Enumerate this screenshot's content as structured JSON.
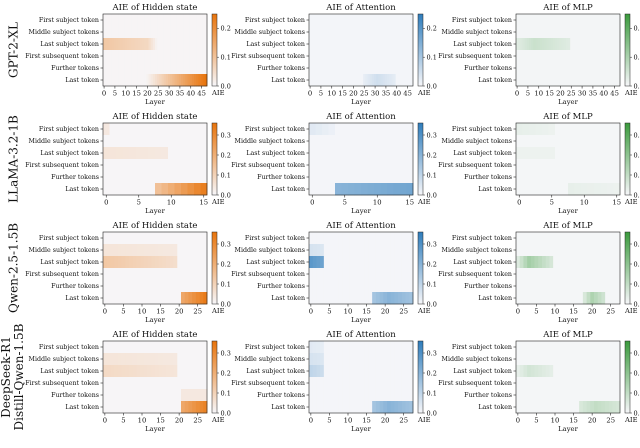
{
  "chart_data": {
    "type": "heatmap",
    "colorbar_label": "AIE",
    "xlabel": "Layer",
    "row_labels": [
      "First subject token",
      "Middle subject tokens",
      "Last subject token",
      "First subsequent token",
      "Further tokens",
      "Last token"
    ],
    "panel_titles": [
      "AIE of Hidden state",
      "AIE of Attention",
      "AIE of MLP"
    ],
    "panel_colors": [
      "#e8740c",
      "#2f7dbc",
      "#3a9a3c"
    ],
    "models": [
      {
        "name": "GPT-2-XL",
        "name_lines": [
          "GPT-2-XL"
        ],
        "n_layers": 48,
        "xticks": [
          0,
          5,
          10,
          15,
          20,
          25,
          30,
          35,
          40,
          45
        ],
        "panels": [
          {
            "vmax": 0.25,
            "cbar_ticks": [
              0.0,
              0.1,
              0.2
            ],
            "cbar_tick_labels": [
              "0.0",
              "0.1",
              "0.2"
            ],
            "regions": [
              {
                "row": 2,
                "from": 0,
                "to": 20,
                "v1": 0.09,
                "v2": 0.06,
                "fade_to": 25
              },
              {
                "row": 5,
                "from": 20,
                "to": 48,
                "v1": 0.01,
                "v2": 0.25
              }
            ]
          },
          {
            "vmax": 0.25,
            "cbar_ticks": [
              0.0,
              0.1,
              0.2
            ],
            "cbar_tick_labels": [
              "0.0",
              "0.1",
              "0.2"
            ],
            "regions": [
              {
                "row": 5,
                "from": 25,
                "to": 40,
                "v1": 0.05,
                "v2": 0.02,
                "peak": 31
              }
            ]
          },
          {
            "vmax": 0.25,
            "cbar_ticks": [
              0.0,
              0.1,
              0.2
            ],
            "cbar_tick_labels": [
              "0.0",
              "0.1",
              "0.2"
            ],
            "regions": [
              {
                "row": 2,
                "from": 0,
                "to": 25,
                "v1": 0.06,
                "v2": 0.03,
                "peak": 8
              }
            ]
          }
        ]
      },
      {
        "name": "LLaMA-3.2-1B",
        "name_lines": [
          "LLaMA-3.2-1B"
        ],
        "n_layers": 16,
        "xticks": [
          0,
          5,
          10,
          15
        ],
        "panels": [
          {
            "vmax": 0.36,
            "cbar_ticks": [
              0.0,
              0.1,
              0.2,
              0.3
            ],
            "cbar_tick_labels": [
              "0.0",
              "0.1",
              "0.2",
              "0.3"
            ],
            "regions": [
              {
                "row": 0,
                "from": 0,
                "to": 1,
                "v1": 0.04,
                "v2": 0.04
              },
              {
                "row": 2,
                "from": 0,
                "to": 10,
                "v1": 0.05,
                "v2": 0.04
              },
              {
                "row": 5,
                "from": 8,
                "to": 16,
                "v1": 0.15,
                "v2": 0.33
              }
            ]
          },
          {
            "vmax": 0.36,
            "cbar_ticks": [
              0.0,
              0.1,
              0.2,
              0.3
            ],
            "cbar_tick_labels": [
              "0.0",
              "0.1",
              "0.2",
              "0.3"
            ],
            "regions": [
              {
                "row": 0,
                "from": 0,
                "to": 4,
                "v1": 0.04,
                "v2": 0.02
              },
              {
                "row": 5,
                "from": 4,
                "to": 16,
                "v1": 0.2,
                "v2": 0.24
              }
            ]
          },
          {
            "vmax": 0.36,
            "cbar_ticks": [
              0.0,
              0.1,
              0.2,
              0.3
            ],
            "cbar_tick_labels": [
              "0.0",
              "0.1",
              "0.2",
              "0.3"
            ],
            "regions": [
              {
                "row": 0,
                "from": 0,
                "to": 6,
                "v1": 0.03,
                "v2": 0.02
              },
              {
                "row": 2,
                "from": 0,
                "to": 6,
                "v1": 0.02,
                "v2": 0.02
              },
              {
                "row": 5,
                "from": 8,
                "to": 16,
                "v1": 0.03,
                "v2": 0.02
              }
            ]
          }
        ]
      },
      {
        "name": "Qwen-2.5-1.5B",
        "name_lines": [
          "Qwen-2.5-1.5B"
        ],
        "n_layers": 28,
        "xticks": [
          0,
          5,
          10,
          15,
          20,
          25
        ],
        "panels": [
          {
            "vmax": 0.36,
            "cbar_ticks": [
              0.0,
              0.1,
              0.2,
              0.3
            ],
            "cbar_tick_labels": [
              "0.0",
              "0.1",
              "0.2",
              "0.3"
            ],
            "regions": [
              {
                "row": 1,
                "from": 0,
                "to": 20,
                "v1": 0.05,
                "v2": 0.04
              },
              {
                "row": 2,
                "from": 0,
                "to": 20,
                "v1": 0.13,
                "v2": 0.07
              },
              {
                "row": 5,
                "from": 21,
                "to": 28,
                "v1": 0.22,
                "v2": 0.34
              }
            ]
          },
          {
            "vmax": 0.36,
            "cbar_ticks": [
              0.0,
              0.1,
              0.2,
              0.3
            ],
            "cbar_tick_labels": [
              "0.0",
              "0.1",
              "0.2",
              "0.3"
            ],
            "regions": [
              {
                "row": 1,
                "from": 0,
                "to": 4,
                "v1": 0.06,
                "v2": 0.05
              },
              {
                "row": 2,
                "from": 0,
                "to": 4,
                "v1": 0.28,
                "v2": 0.25
              },
              {
                "row": 5,
                "from": 17,
                "to": 28,
                "v1": 0.2,
                "v2": 0.15,
                "peak": 21
              }
            ]
          },
          {
            "vmax": 0.36,
            "cbar_ticks": [
              0.0,
              0.1,
              0.2,
              0.3
            ],
            "cbar_tick_labels": [
              "0.0",
              "0.1",
              "0.2",
              "0.3"
            ],
            "regions": [
              {
                "row": 2,
                "from": 0,
                "to": 10,
                "v1": 0.16,
                "v2": 0.05,
                "peak": 3
              },
              {
                "row": 5,
                "from": 18,
                "to": 24,
                "v1": 0.14,
                "v2": 0.06,
                "peak": 20
              }
            ]
          }
        ]
      },
      {
        "name": "DeepSeek-R1 Distill-Qwen-1.5B",
        "name_lines": [
          "DeepSeek-R1",
          "Distill-Qwen-1.5B"
        ],
        "n_layers": 28,
        "xticks": [
          0,
          5,
          10,
          15,
          20,
          25
        ],
        "panels": [
          {
            "vmax": 0.36,
            "cbar_ticks": [
              0.0,
              0.1,
              0.2,
              0.3
            ],
            "cbar_tick_labels": [
              "0.0",
              "0.1",
              "0.2",
              "0.3"
            ],
            "regions": [
              {
                "row": 1,
                "from": 0,
                "to": 20,
                "v1": 0.05,
                "v2": 0.04
              },
              {
                "row": 2,
                "from": 0,
                "to": 20,
                "v1": 0.08,
                "v2": 0.05
              },
              {
                "row": 4,
                "from": 21,
                "to": 28,
                "v1": 0.04,
                "v2": 0.04
              },
              {
                "row": 5,
                "from": 21,
                "to": 28,
                "v1": 0.22,
                "v2": 0.32
              }
            ]
          },
          {
            "vmax": 0.36,
            "cbar_ticks": [
              0.0,
              0.1,
              0.2,
              0.3
            ],
            "cbar_tick_labels": [
              "0.0",
              "0.1",
              "0.2",
              "0.3"
            ],
            "regions": [
              {
                "row": 0,
                "from": 0,
                "to": 4,
                "v1": 0.04,
                "v2": 0.03
              },
              {
                "row": 1,
                "from": 0,
                "to": 4,
                "v1": 0.06,
                "v2": 0.05
              },
              {
                "row": 2,
                "from": 0,
                "to": 4,
                "v1": 0.1,
                "v2": 0.08
              },
              {
                "row": 5,
                "from": 17,
                "to": 28,
                "v1": 0.2,
                "v2": 0.15,
                "peak": 21
              }
            ]
          },
          {
            "vmax": 0.36,
            "cbar_ticks": [
              0.0,
              0.1,
              0.2,
              0.3
            ],
            "cbar_tick_labels": [
              "0.0",
              "0.1",
              "0.2",
              "0.3"
            ],
            "regions": [
              {
                "row": 2,
                "from": 0,
                "to": 10,
                "v1": 0.07,
                "v2": 0.03,
                "peak": 3
              },
              {
                "row": 5,
                "from": 17,
                "to": 28,
                "v1": 0.1,
                "v2": 0.06,
                "peak": 21
              }
            ]
          }
        ]
      }
    ]
  }
}
